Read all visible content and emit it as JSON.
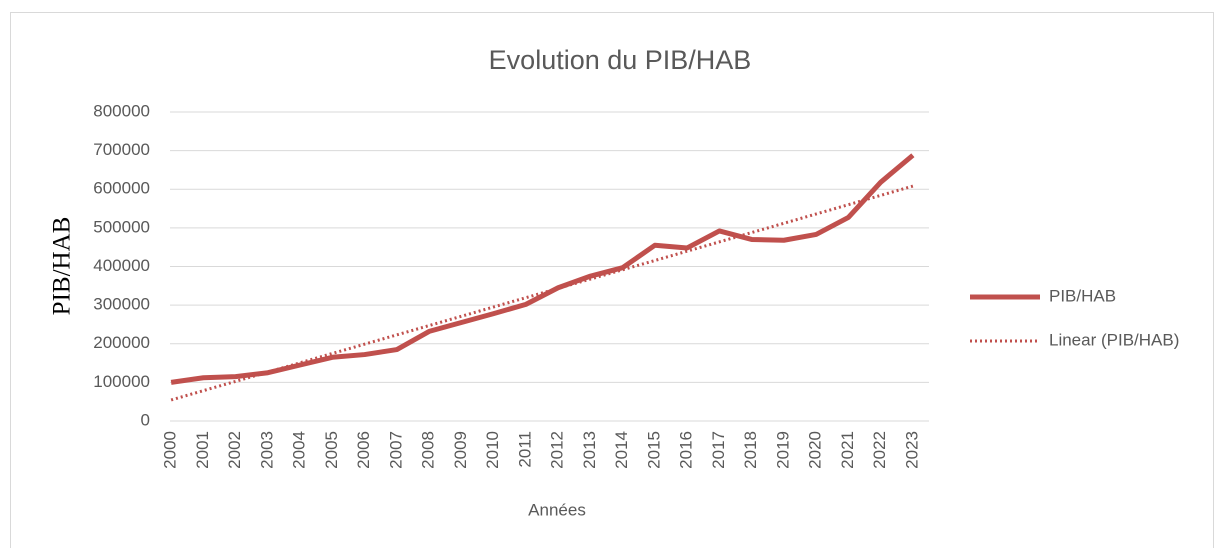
{
  "chart_data": {
    "type": "line",
    "title": "Evolution du PIB/HAB",
    "x_label": "Années",
    "y_label": "PIB/HAB",
    "categories": [
      "2000",
      "2001",
      "2002",
      "2003",
      "2004",
      "2005",
      "2006",
      "2007",
      "2008",
      "2009",
      "2010",
      "2011",
      "2012",
      "2013",
      "2014",
      "2015",
      "2016",
      "2017",
      "2018",
      "2019",
      "2020",
      "2021",
      "2022",
      "2023"
    ],
    "series": [
      {
        "name": "PIB/HAB",
        "color": "#c0504d",
        "values": [
          100000,
          112000,
          115000,
          125000,
          145000,
          165000,
          172000,
          185000,
          232000,
          255000,
          278000,
          302000,
          345000,
          375000,
          397000,
          455000,
          448000,
          492000,
          470000,
          468000,
          483000,
          527000,
          618000,
          688000
        ],
        "trendline": {
          "type": "linear",
          "name": "Linear (PIB/HAB)"
        }
      }
    ],
    "ylim": [
      0,
      800000
    ],
    "yticks": [
      0,
      100000,
      200000,
      300000,
      400000,
      500000,
      600000,
      700000,
      800000
    ],
    "grid": true,
    "legend": "right"
  }
}
